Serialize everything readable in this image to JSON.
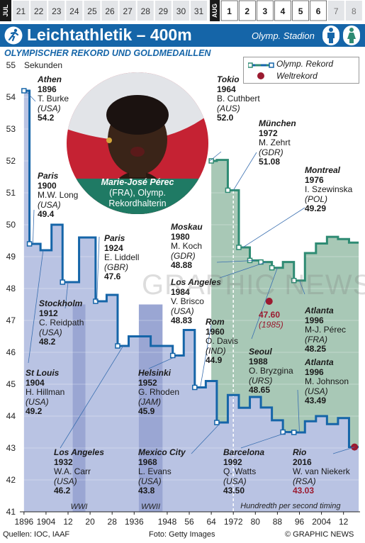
{
  "datebar": {
    "jul_label": "JUL",
    "aug_label": "AUG",
    "jul_days": [
      "21",
      "22",
      "23",
      "24",
      "25",
      "26",
      "27",
      "28",
      "29",
      "30",
      "31"
    ],
    "aug_days": [
      "1",
      "2",
      "3",
      "4",
      "5",
      "6",
      "7",
      "8"
    ],
    "selected_aug_days": [
      "1",
      "2",
      "3",
      "4",
      "5",
      "6"
    ]
  },
  "header": {
    "title": "Leichtathletik – 400m",
    "venue": "Olymp. Stadion",
    "icons": [
      "runner-icon",
      "male-icon",
      "female-icon"
    ]
  },
  "subtitle": "OLYMPISCHER REKORD UND GOLDMEDAILLEN",
  "legend": {
    "record": "Olymp. Rekord",
    "world": "Weltrekord"
  },
  "photo_caption": {
    "name": "Marie-José Pérec",
    "nat": "(FRA), Olymp.",
    "role": "Rekordhalterin"
  },
  "chart_data": {
    "type": "line",
    "ylabel": "Sekunden",
    "ylim": [
      41,
      55
    ],
    "yticks": [
      41,
      42,
      43,
      44,
      45,
      46,
      47,
      48,
      49,
      50,
      51,
      52,
      53,
      54,
      55
    ],
    "xlim": [
      1894.5,
      2018
    ],
    "xticks": [
      {
        "x": 1896,
        "label": "1896"
      },
      {
        "x": 1904,
        "label": "1904"
      },
      {
        "x": 1912,
        "label": "12"
      },
      {
        "x": 1920,
        "label": "20"
      },
      {
        "x": 1928,
        "label": "28"
      },
      {
        "x": 1936,
        "label": "1936"
      },
      {
        "x": 1948,
        "label": "1948"
      },
      {
        "x": 1956,
        "label": "56"
      },
      {
        "x": 1964,
        "label": "64"
      },
      {
        "x": 1972,
        "label": "1972"
      },
      {
        "x": 1980,
        "label": "80"
      },
      {
        "x": 1988,
        "label": "88"
      },
      {
        "x": 1996,
        "label": "96"
      },
      {
        "x": 2004,
        "label": "2004"
      },
      {
        "x": 2012,
        "label": "12"
      }
    ],
    "gaps": [
      {
        "from": 1916,
        "to": 1916,
        "label": "WWI"
      },
      {
        "from": 1940,
        "to": 1944,
        "label": "WWII"
      }
    ],
    "timing_note": "Hundredth per second timing",
    "timing_year": 1972,
    "series": [
      {
        "name": "Männer",
        "points": [
          [
            1896,
            54.2
          ],
          [
            1900,
            49.4
          ],
          [
            1904,
            49.2
          ],
          [
            1908,
            50.0
          ],
          [
            1912,
            48.2
          ],
          [
            1920,
            49.6
          ],
          [
            1924,
            47.6
          ],
          [
            1928,
            47.8
          ],
          [
            1932,
            46.2
          ],
          [
            1936,
            46.5
          ],
          [
            1948,
            46.2
          ],
          [
            1952,
            45.9
          ],
          [
            1956,
            46.7
          ],
          [
            1960,
            44.9
          ],
          [
            1964,
            45.1
          ],
          [
            1968,
            43.8
          ],
          [
            1972,
            44.66
          ],
          [
            1976,
            44.26
          ],
          [
            1980,
            44.6
          ],
          [
            1984,
            44.27
          ],
          [
            1988,
            43.87
          ],
          [
            1992,
            43.5
          ],
          [
            1996,
            43.49
          ],
          [
            2000,
            43.84
          ],
          [
            2004,
            44.0
          ],
          [
            2008,
            43.75
          ],
          [
            2012,
            43.94
          ],
          [
            2016,
            43.03
          ]
        ]
      },
      {
        "name": "Frauen",
        "points": [
          [
            1964,
            52.0
          ],
          [
            1968,
            52.03
          ],
          [
            1972,
            51.08
          ],
          [
            1976,
            49.29
          ],
          [
            1980,
            48.88
          ],
          [
            1984,
            48.83
          ],
          [
            1988,
            48.65
          ],
          [
            1992,
            48.83
          ],
          [
            1996,
            48.25
          ],
          [
            2000,
            49.11
          ],
          [
            2004,
            49.41
          ],
          [
            2008,
            49.62
          ],
          [
            2012,
            49.55
          ],
          [
            2016,
            49.44
          ]
        ]
      }
    ],
    "olympic_record_markers": [
      {
        "series": "Männer",
        "years": [
          1896,
          1900,
          1912,
          1924,
          1932,
          1952,
          1960,
          1968,
          1992,
          1996
        ]
      },
      {
        "series": "Frauen",
        "years": [
          1964,
          1972,
          1976,
          1980,
          1984,
          1988,
          1996
        ]
      }
    ],
    "world_records": [
      {
        "x": 2016,
        "y": 43.03
      },
      {
        "x": 1985,
        "y": 47.6
      }
    ]
  },
  "annotations": [
    {
      "id": "athens",
      "city": "Athen",
      "year": "1896",
      "name": "T. Burke",
      "nat": "(USA)",
      "time": "54.2"
    },
    {
      "id": "paris1900",
      "city": "Paris",
      "year": "1900",
      "name": "M.W. Long",
      "nat": "(USA)",
      "time": "49.4"
    },
    {
      "id": "paris1924",
      "city": "Paris",
      "year": "1924",
      "name": "E. Liddell",
      "nat": "(GBR)",
      "time": "47.6"
    },
    {
      "id": "stockholm",
      "city": "Stockholm",
      "year": "1912",
      "name": "C. Reidpath",
      "nat": "(USA)",
      "time": "48.2"
    },
    {
      "id": "stlouis",
      "city": "St Louis",
      "year": "1904",
      "name": "H. Hillman",
      "nat": "(USA)",
      "time": "49.2"
    },
    {
      "id": "losangeles1932",
      "city": "Los Angeles",
      "year": "1932",
      "name": "W.A. Carr",
      "nat": "(USA)",
      "time": "46.2"
    },
    {
      "id": "helsinki",
      "city": "Helsinki",
      "year": "1952",
      "name": "G. Rhoden",
      "nat": "(JAM)",
      "time": "45.9"
    },
    {
      "id": "mexico",
      "city": "Mexico City",
      "year": "1968",
      "name": "L. Evans",
      "nat": "(USA)",
      "time": "43.8"
    },
    {
      "id": "rome",
      "city": "Rom",
      "year": "1960",
      "name": "O. Davis",
      "nat": "(IND)",
      "time": "44.9"
    },
    {
      "id": "tokyo",
      "city": "Tokio",
      "year": "1964",
      "name": "B. Cuthbert",
      "nat": "(AUS)",
      "time": "52.0"
    },
    {
      "id": "munich",
      "city": "München",
      "year": "1972",
      "name": "M. Zehrt",
      "nat": "(GDR)",
      "time": "51.08"
    },
    {
      "id": "montreal",
      "city": "Montreal",
      "year": "1976",
      "name": "I. Szewinska",
      "nat": "(POL)",
      "time": "49.29"
    },
    {
      "id": "moscow",
      "city": "Moskau",
      "year": "1980",
      "name": "M. Koch",
      "nat": "(GDR)",
      "time": "48.88"
    },
    {
      "id": "la1984",
      "city": "Los Angeles",
      "year": "1984",
      "name": "V. Brisco",
      "nat": "(USA)",
      "time": "48.83"
    },
    {
      "id": "seoul",
      "city": "Seoul",
      "year": "1988",
      "name": "O. Bryzgina",
      "nat": "(URS)",
      "time": "48.65"
    },
    {
      "id": "atlanta_w",
      "city": "Atlanta",
      "year": "1996",
      "name": "M-J. Pérec",
      "nat": "(FRA)",
      "time": "48.25"
    },
    {
      "id": "atlanta_m",
      "city": "Atlanta",
      "year": "1996",
      "name": "M. Johnson",
      "nat": "(USA)",
      "time": "43.49"
    },
    {
      "id": "barcelona",
      "city": "Barcelona",
      "year": "1992",
      "name": "Q. Watts",
      "nat": "(USA)",
      "time": "43.50"
    },
    {
      "id": "rio",
      "city": "Rio",
      "year": "2016",
      "name": "W. van Niekerk",
      "nat": "(RSA)",
      "time": "43.03"
    }
  ],
  "world_record_label": {
    "time": "47.60",
    "year": "(1985)"
  },
  "footer": {
    "sources": "Quellen: IOC, IAAF",
    "photo": "Foto: Getty Images",
    "credit": "© GRAPHIC NEWS"
  },
  "watermark": "GRAPHIC NEWS",
  "colors": {
    "blue": "#1565a8",
    "green": "#2e8b73",
    "men_fill": "#b9c3e3",
    "women_fill": "#a8c8b6",
    "wr": "#9b1b30"
  }
}
